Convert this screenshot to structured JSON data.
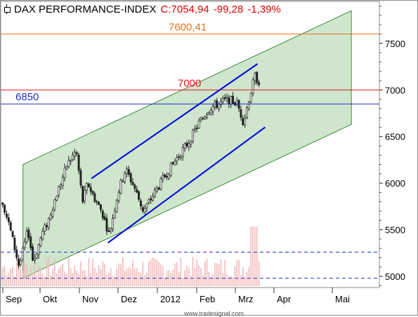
{
  "header": {
    "instrument": "DAX PERFORMANCE-INDEX",
    "close": "C:7054,94",
    "change": "-99,28",
    "change_pct": "-1,39%"
  },
  "watermark": "www.tradesignal.com",
  "colors": {
    "channel_fill": "#cfe6cc",
    "channel_edge": "#3e8a3e",
    "trend_lines": "#0a12d8",
    "resistance_7600": "#e8711c",
    "resistance_7000": "#e01818",
    "support_6850": "#1f2fc8",
    "dashed_support": "#1f2fc8",
    "volume": "#f2b8b8",
    "candle_up": "#ffffff",
    "candle_down": "#222222"
  },
  "chart_data": {
    "type": "candlestick",
    "title": "DAX PERFORMANCE-INDEX",
    "ylim": [
      4880,
      7950
    ],
    "y_ticks": [
      5000,
      5500,
      6000,
      6500,
      7000,
      7500
    ],
    "x_ticks": [
      "Sep",
      "Okt",
      "Nov",
      "Dez",
      "2012",
      "Feb",
      "Mrz",
      "Apr",
      "Mai"
    ],
    "grid": false,
    "levels": [
      {
        "label": "7600,41",
        "value": 7600.41,
        "style": "solid",
        "color": "#e8711c"
      },
      {
        "label": "7000",
        "value": 7000,
        "style": "solid",
        "color": "#e01818"
      },
      {
        "label": "6850",
        "value": 6850,
        "style": "solid",
        "color": "#1f2fc8"
      },
      {
        "label": "",
        "value": 5260,
        "style": "dashed",
        "color": "#1f2fc8"
      },
      {
        "label": "",
        "value": 4980,
        "style": "dashed",
        "color": "#1f2fc8"
      }
    ],
    "channel": {
      "upper": [
        {
          "x": "2011-09-15",
          "y": 6200
        },
        {
          "x": "2012-05-31",
          "y": 7850
        }
      ],
      "lower": [
        {
          "x": "2011-09-15",
          "y": 4980
        },
        {
          "x": "2012-05-31",
          "y": 6630
        }
      ]
    },
    "trend_lines": [
      {
        "from": {
          "x": "2011-11-08",
          "y": 6050
        },
        "to": {
          "x": "2012-03-18",
          "y": 7280
        }
      },
      {
        "from": {
          "x": "2011-11-21",
          "y": 5360
        },
        "to": {
          "x": "2012-03-24",
          "y": 6600
        }
      }
    ],
    "series": [
      {
        "price_waypoints": [
          {
            "x": "2011-08-30",
            "y": 5800
          },
          {
            "x": "2011-09-05",
            "y": 5500
          },
          {
            "x": "2011-09-12",
            "y": 5100
          },
          {
            "x": "2011-09-19",
            "y": 5500
          },
          {
            "x": "2011-09-23",
            "y": 5150
          },
          {
            "x": "2011-09-30",
            "y": 5450
          },
          {
            "x": "2011-10-05",
            "y": 5600
          },
          {
            "x": "2011-10-12",
            "y": 5900
          },
          {
            "x": "2011-10-20",
            "y": 6200
          },
          {
            "x": "2011-10-27",
            "y": 6350
          },
          {
            "x": "2011-11-01",
            "y": 5800
          },
          {
            "x": "2011-11-05",
            "y": 6000
          },
          {
            "x": "2011-11-10",
            "y": 5850
          },
          {
            "x": "2011-11-16",
            "y": 5700
          },
          {
            "x": "2011-11-22",
            "y": 5450
          },
          {
            "x": "2011-11-29",
            "y": 5900
          },
          {
            "x": "2011-12-05",
            "y": 6150
          },
          {
            "x": "2011-12-12",
            "y": 5950
          },
          {
            "x": "2011-12-19",
            "y": 5700
          },
          {
            "x": "2011-12-28",
            "y": 5900
          },
          {
            "x": "2012-01-06",
            "y": 6100
          },
          {
            "x": "2012-01-16",
            "y": 6300
          },
          {
            "x": "2012-01-24",
            "y": 6450
          },
          {
            "x": "2012-02-01",
            "y": 6650
          },
          {
            "x": "2012-02-09",
            "y": 6800
          },
          {
            "x": "2012-02-16",
            "y": 6850
          },
          {
            "x": "2012-02-24",
            "y": 6900
          },
          {
            "x": "2012-03-02",
            "y": 6850
          },
          {
            "x": "2012-03-07",
            "y": 6650
          },
          {
            "x": "2012-03-12",
            "y": 6950
          },
          {
            "x": "2012-03-16",
            "y": 7150
          },
          {
            "x": "2012-03-20",
            "y": 7054.94
          }
        ]
      }
    ]
  }
}
